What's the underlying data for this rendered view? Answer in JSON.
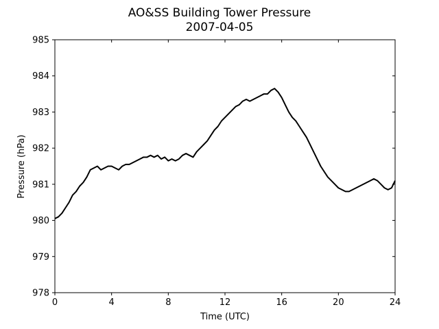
{
  "chart_data": {
    "type": "line",
    "title": "AO&SS Building Tower Pressure",
    "subtitle": "2007-04-05",
    "xlabel": "Time (UTC)",
    "ylabel": "Pressure (hPa)",
    "xlim": [
      0,
      24
    ],
    "ylim": [
      978,
      985
    ],
    "xticks": [
      0,
      4,
      8,
      12,
      16,
      20,
      24
    ],
    "yticks": [
      978,
      979,
      980,
      981,
      982,
      983,
      984,
      985
    ],
    "grid": false,
    "line_color": "#000000",
    "series": [
      {
        "x": [
          0,
          0.25,
          0.5,
          0.75,
          1.0,
          1.25,
          1.5,
          1.75,
          2.0,
          2.25,
          2.5,
          2.75,
          3.0,
          3.25,
          3.5,
          3.75,
          4.0,
          4.25,
          4.5,
          4.75,
          5.0,
          5.25,
          5.5,
          5.75,
          6.0,
          6.25,
          6.5,
          6.75,
          7.0,
          7.25,
          7.5,
          7.75,
          8.0,
          8.25,
          8.5,
          8.75,
          9.0,
          9.25,
          9.5,
          9.75,
          10.0,
          10.25,
          10.5,
          10.75,
          11.0,
          11.25,
          11.5,
          11.75,
          12.0,
          12.25,
          12.5,
          12.75,
          13.0,
          13.25,
          13.5,
          13.75,
          14.0,
          14.25,
          14.5,
          14.75,
          15.0,
          15.25,
          15.5,
          15.75,
          16.0,
          16.25,
          16.5,
          16.75,
          17.0,
          17.25,
          17.5,
          17.75,
          18.0,
          18.25,
          18.5,
          18.75,
          19.0,
          19.25,
          19.5,
          19.75,
          20.0,
          20.25,
          20.5,
          20.75,
          21.0,
          21.25,
          21.5,
          21.75,
          22.0,
          22.25,
          22.5,
          22.75,
          23.0,
          23.25,
          23.5,
          23.75,
          24.0
        ],
        "values": [
          980.05,
          980.1,
          980.2,
          980.35,
          980.5,
          980.7,
          980.8,
          980.95,
          981.05,
          981.2,
          981.4,
          981.45,
          981.5,
          981.4,
          981.45,
          981.5,
          981.5,
          981.45,
          981.4,
          981.5,
          981.55,
          981.55,
          981.6,
          981.65,
          981.7,
          981.75,
          981.75,
          981.8,
          981.75,
          981.8,
          981.7,
          981.75,
          981.65,
          981.7,
          981.65,
          981.7,
          981.8,
          981.85,
          981.8,
          981.75,
          981.9,
          982.0,
          982.1,
          982.2,
          982.35,
          982.5,
          982.6,
          982.75,
          982.85,
          982.95,
          983.05,
          983.15,
          983.2,
          983.3,
          983.35,
          983.3,
          983.35,
          983.4,
          983.45,
          983.5,
          983.5,
          983.6,
          983.65,
          983.55,
          983.4,
          983.2,
          983.0,
          982.85,
          982.75,
          982.6,
          982.45,
          982.3,
          982.1,
          981.9,
          981.7,
          981.5,
          981.35,
          981.2,
          981.1,
          981.0,
          980.9,
          980.85,
          980.8,
          980.8,
          980.85,
          980.9,
          980.95,
          981.0,
          981.05,
          981.1,
          981.15,
          981.1,
          981.0,
          980.9,
          980.85,
          980.9,
          981.1
        ]
      }
    ]
  }
}
